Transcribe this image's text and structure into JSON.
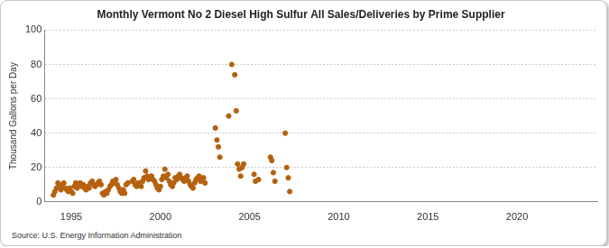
{
  "chart_data": {
    "type": "scatter",
    "title": "Monthly Vermont No 2 Diesel High Sulfur All Sales/Deliveries by Prime Supplier",
    "y_label": "Thousand Gallons per Day",
    "source": "Source: U.S. Energy Information Administration",
    "color": "#b5610f",
    "marker": "circle",
    "grid": true,
    "xlim": [
      1993.5,
      2024.5
    ],
    "xticks": [
      1995,
      2000,
      2005,
      2010,
      2015,
      2020
    ],
    "ylim": [
      0,
      100
    ],
    "yticks": [
      0,
      20,
      40,
      60,
      80,
      100
    ],
    "x": [
      1994.0,
      1994.08,
      1994.17,
      1994.25,
      1994.33,
      1994.42,
      1994.5,
      1994.58,
      1994.67,
      1994.75,
      1994.83,
      1994.92,
      1995.0,
      1995.08,
      1995.17,
      1995.25,
      1995.33,
      1995.42,
      1995.5,
      1995.58,
      1995.67,
      1995.75,
      1995.83,
      1995.92,
      1996.0,
      1996.08,
      1996.17,
      1996.25,
      1996.33,
      1996.42,
      1996.5,
      1996.58,
      1996.67,
      1996.75,
      1996.83,
      1996.92,
      1997.0,
      1997.08,
      1997.17,
      1997.25,
      1997.33,
      1997.42,
      1997.5,
      1997.58,
      1997.67,
      1997.75,
      1997.83,
      1997.92,
      1998.0,
      1998.08,
      1998.17,
      1998.42,
      1998.5,
      1998.58,
      1998.67,
      1998.75,
      1998.83,
      1998.92,
      1999.0,
      1999.08,
      1999.17,
      1999.25,
      1999.33,
      1999.42,
      1999.5,
      1999.58,
      1999.67,
      1999.75,
      1999.83,
      1999.92,
      2000.0,
      2000.08,
      2000.17,
      2000.25,
      2000.33,
      2000.42,
      2000.5,
      2000.58,
      2000.67,
      2000.75,
      2000.83,
      2000.92,
      2001.0,
      2001.08,
      2001.17,
      2001.25,
      2001.33,
      2001.42,
      2001.5,
      2001.58,
      2001.67,
      2001.75,
      2001.83,
      2001.92,
      2002.0,
      2002.08,
      2002.17,
      2002.25,
      2002.33,
      2002.42,
      2002.5,
      2003.08,
      2003.17,
      2003.25,
      2003.33,
      2003.83,
      2004.0,
      2004.17,
      2004.25,
      2004.33,
      2004.42,
      2004.5,
      2004.58,
      2004.67,
      2005.25,
      2005.33,
      2005.5,
      2006.17,
      2006.25,
      2006.33,
      2006.42,
      2007.0,
      2007.08,
      2007.17,
      2007.25
    ],
    "values": [
      4,
      6,
      8,
      11,
      9,
      7,
      10,
      11,
      8,
      7,
      6,
      8,
      6,
      5,
      9,
      11,
      8,
      10,
      11,
      9,
      10,
      8,
      7,
      9,
      8,
      11,
      12,
      10,
      9,
      10,
      11,
      12,
      10,
      5,
      4,
      6,
      5,
      7,
      9,
      10,
      12,
      11,
      13,
      10,
      8,
      6,
      5,
      7,
      5,
      10,
      11,
      12,
      13,
      10,
      9,
      11,
      10,
      9,
      12,
      14,
      18,
      15,
      13,
      14,
      15,
      13,
      12,
      10,
      8,
      7,
      9,
      13,
      15,
      19,
      14,
      16,
      12,
      10,
      9,
      11,
      14,
      13,
      15,
      16,
      14,
      13,
      12,
      14,
      15,
      12,
      10,
      9,
      8,
      11,
      13,
      14,
      15,
      12,
      13,
      14,
      11,
      43,
      36,
      32,
      26,
      50,
      80,
      74,
      53,
      22,
      19,
      15,
      20,
      22,
      16,
      12,
      13,
      26,
      24,
      17,
      12,
      40,
      20,
      14,
      6
    ]
  }
}
